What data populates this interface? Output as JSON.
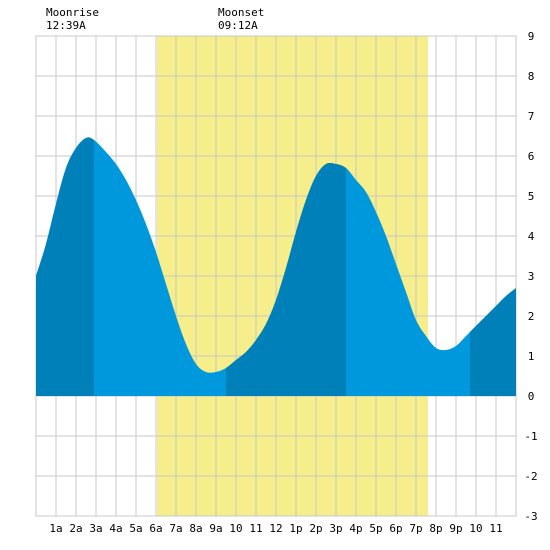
{
  "chart_data": {
    "type": "area",
    "moon": {
      "rise_label": "Moonrise",
      "rise_time": "12:39A",
      "set_label": "Moonset",
      "set_time": "09:12A"
    },
    "daylight": {
      "start_hour": 6.05,
      "end_hour": 19.6,
      "color": "#f5ee8a"
    },
    "x_ticks": [
      "1a",
      "2a",
      "3a",
      "4a",
      "5a",
      "6a",
      "7a",
      "8a",
      "9a",
      "10",
      "11",
      "12",
      "1p",
      "2p",
      "3p",
      "4p",
      "5p",
      "6p",
      "7p",
      "8p",
      "9p",
      "10",
      "11"
    ],
    "xlim": [
      0,
      24
    ],
    "ylim": [
      -3,
      9
    ],
    "y_ticks": [
      "-3",
      "-2",
      "-1",
      "0",
      "1",
      "2",
      "3",
      "4",
      "5",
      "6",
      "7",
      "8",
      "9"
    ],
    "series": [
      {
        "x": [
          0,
          0.5,
          1,
          1.5,
          2,
          2.5,
          2.9,
          3.5,
          4,
          4.5,
          5,
          5.5,
          6,
          6.5,
          7,
          7.5,
          8,
          8.5,
          9,
          9.5,
          10,
          10.5,
          11,
          11.5,
          12,
          12.5,
          13,
          13.5,
          14,
          14.5,
          15,
          15.5,
          16,
          16.5,
          17,
          17.5,
          18,
          18.5,
          19,
          19.5,
          20,
          20.5,
          21,
          21.5,
          22,
          22.5,
          23,
          23.5,
          24
        ],
        "values": [
          3.0,
          3.8,
          4.8,
          5.7,
          6.2,
          6.45,
          6.4,
          6.1,
          5.8,
          5.4,
          4.9,
          4.3,
          3.6,
          2.8,
          2.0,
          1.3,
          0.8,
          0.6,
          0.6,
          0.7,
          0.9,
          1.1,
          1.4,
          1.8,
          2.4,
          3.2,
          4.1,
          4.9,
          5.5,
          5.8,
          5.8,
          5.7,
          5.4,
          5.1,
          4.6,
          4.0,
          3.3,
          2.6,
          1.9,
          1.5,
          1.2,
          1.15,
          1.25,
          1.5,
          1.75,
          2.0,
          2.25,
          2.5,
          2.7
        ],
        "fill_light": "#0098dc",
        "fill_dark": "#0080b8"
      }
    ],
    "dark_bands": [
      [
        0,
        2.9
      ],
      [
        9.5,
        15.5
      ],
      [
        21.7,
        24
      ]
    ],
    "grid": true
  }
}
